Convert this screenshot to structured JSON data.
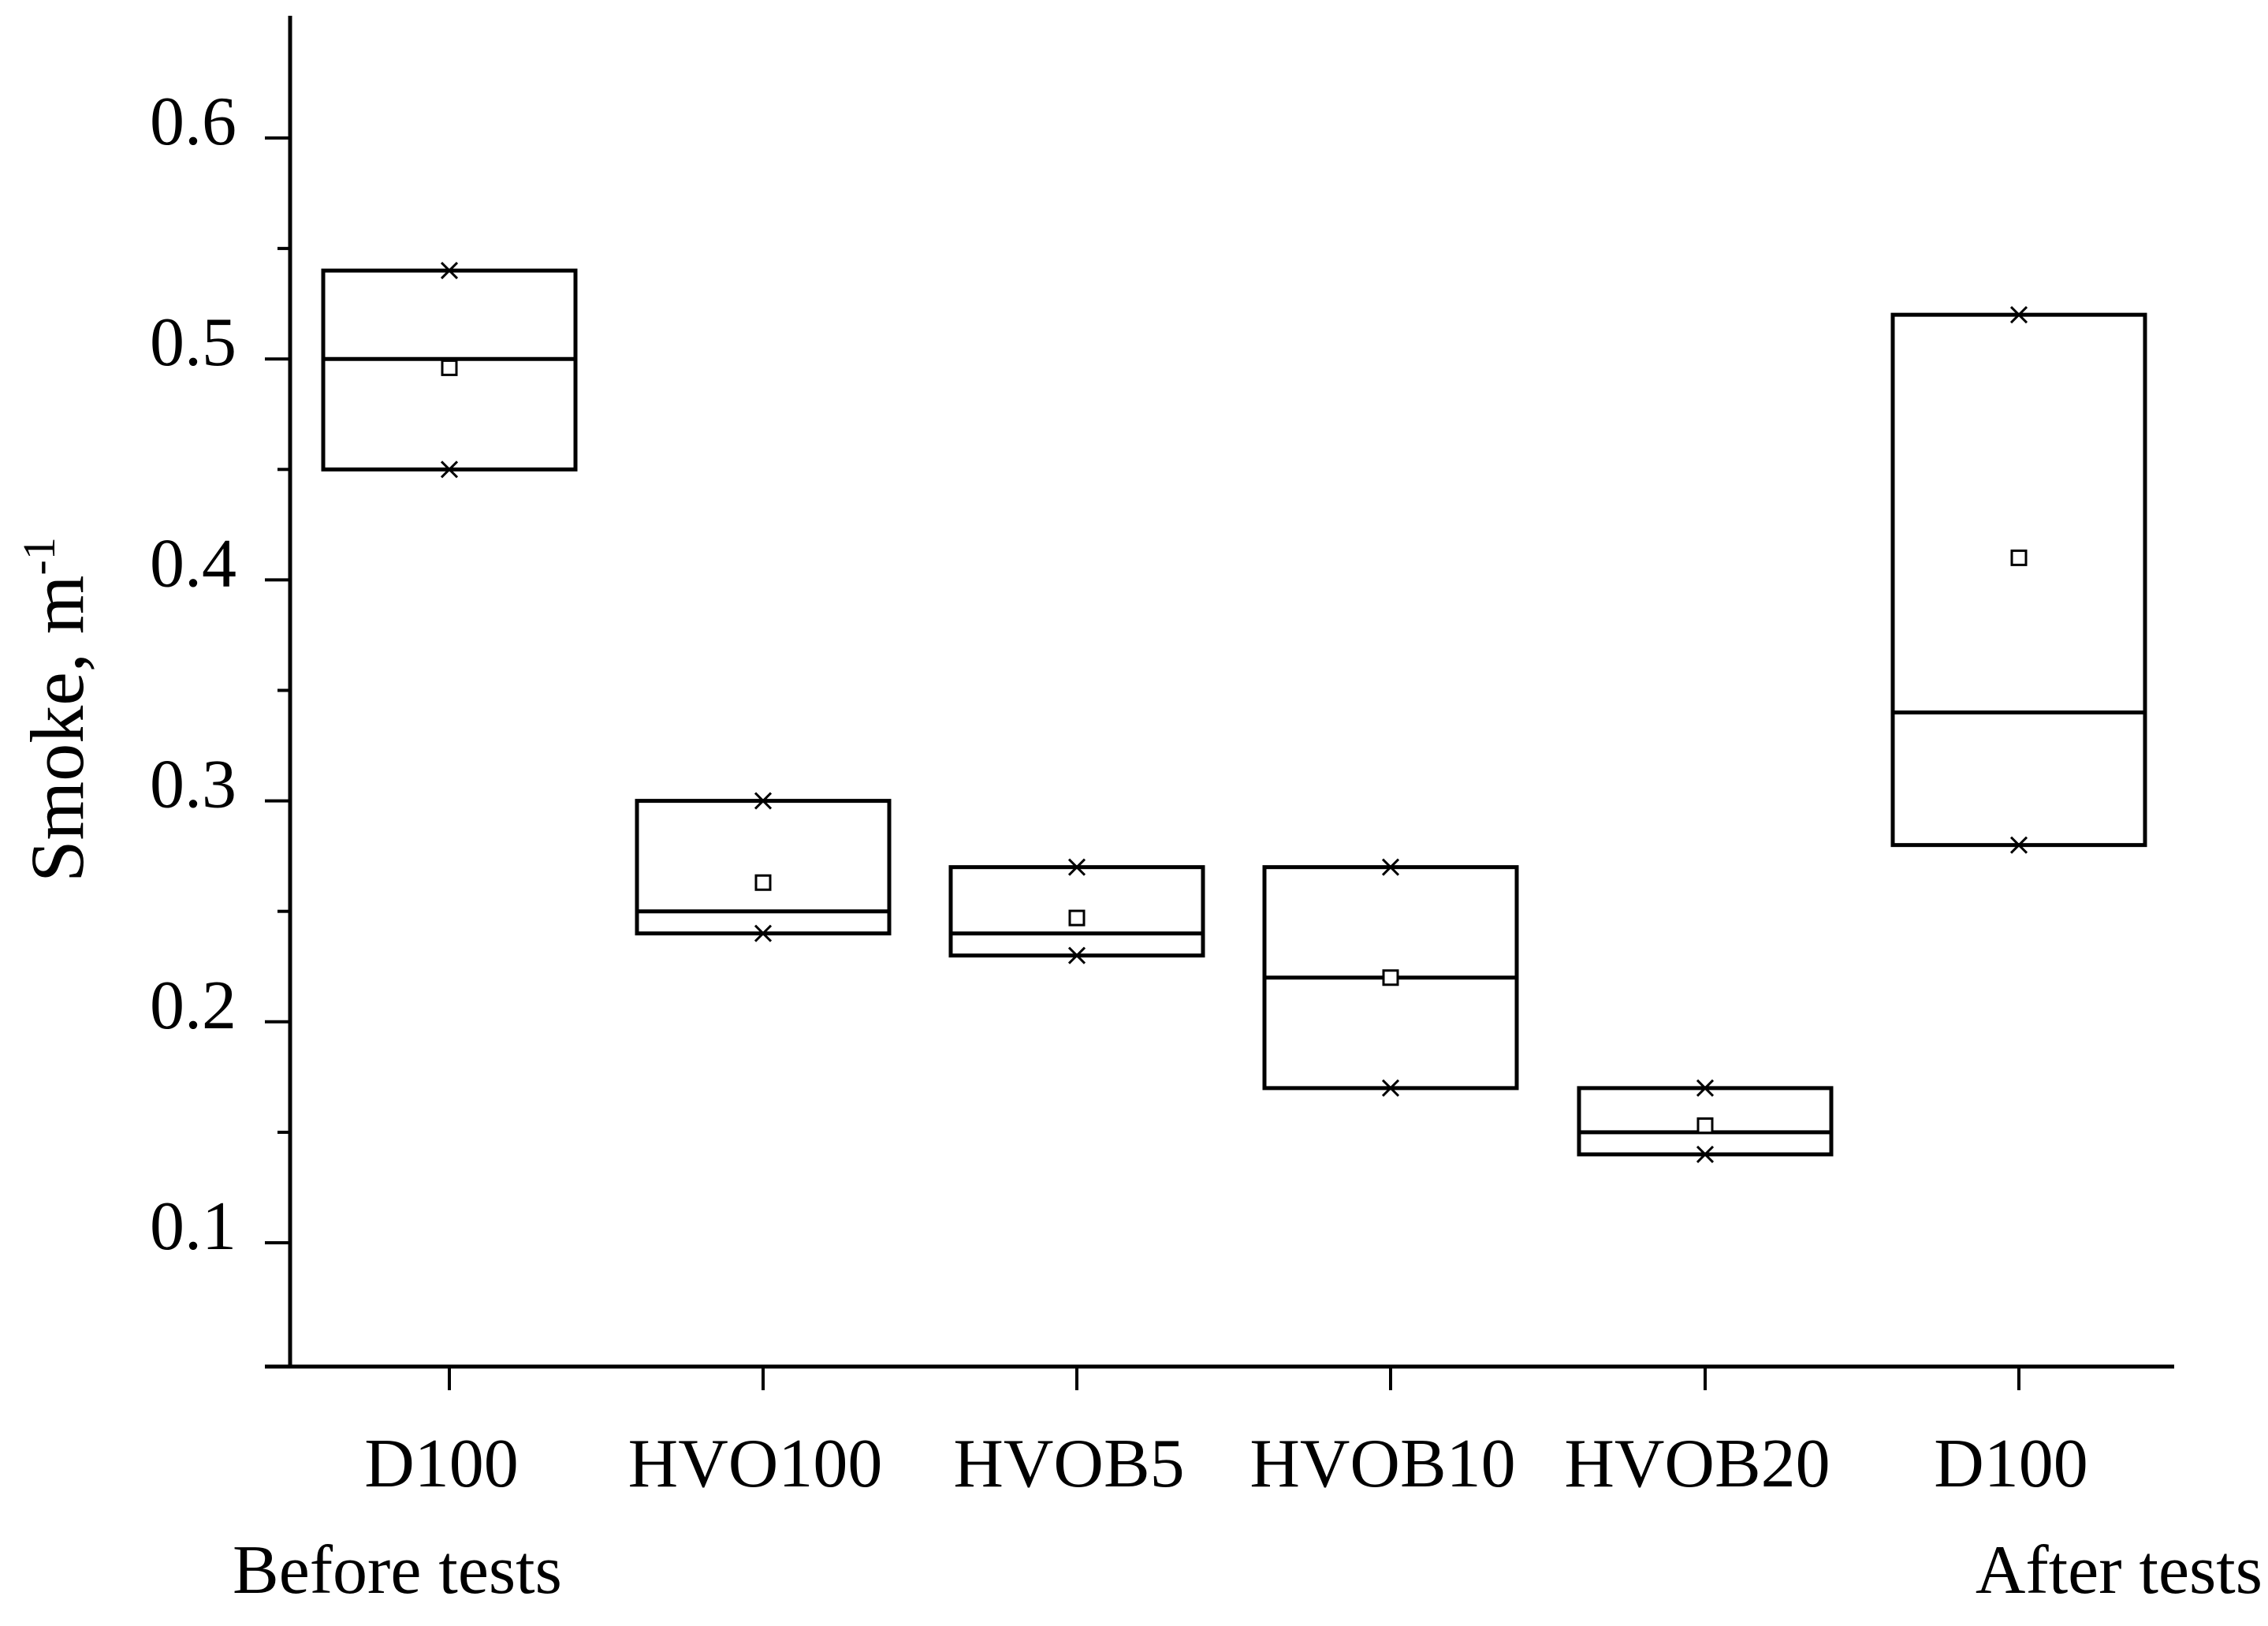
{
  "chart_data": {
    "type": "box",
    "ylabel": "Smoke, m",
    "ylabel_superscript": "-1",
    "ylim": [
      0.05,
      0.65
    ],
    "yticks": [
      {
        "value": 0.1,
        "label": "0.1"
      },
      {
        "value": 0.2,
        "label": "0.2"
      },
      {
        "value": 0.3,
        "label": "0.3"
      },
      {
        "value": 0.4,
        "label": "0.4"
      },
      {
        "value": 0.5,
        "label": "0.5"
      },
      {
        "value": 0.6,
        "label": "0.6"
      }
    ],
    "minor_yticks": [
      0.15,
      0.25,
      0.35,
      0.45,
      0.55
    ],
    "categories": [
      "D100",
      "HVO100",
      "HVOB5",
      "HVOB10",
      "HVOB20",
      "D100"
    ],
    "category_sublabels": [
      "Before tests",
      "",
      "",
      "",
      "",
      "After tests"
    ],
    "boxes": [
      {
        "q1": 0.45,
        "median": 0.5,
        "q3": 0.54,
        "mean": 0.496,
        "min": 0.45,
        "max": 0.54
      },
      {
        "q1": 0.24,
        "median": 0.25,
        "q3": 0.3,
        "mean": 0.263,
        "min": 0.24,
        "max": 0.3
      },
      {
        "q1": 0.23,
        "median": 0.24,
        "q3": 0.27,
        "mean": 0.247,
        "min": 0.23,
        "max": 0.27
      },
      {
        "q1": 0.17,
        "median": 0.22,
        "q3": 0.27,
        "mean": 0.22,
        "min": 0.17,
        "max": 0.27
      },
      {
        "q1": 0.14,
        "median": 0.15,
        "q3": 0.17,
        "mean": 0.153,
        "min": 0.14,
        "max": 0.17
      },
      {
        "q1": 0.28,
        "median": 0.34,
        "q3": 0.52,
        "mean": 0.41,
        "min": 0.28,
        "max": 0.52
      }
    ],
    "grid": false,
    "legend": "none"
  }
}
